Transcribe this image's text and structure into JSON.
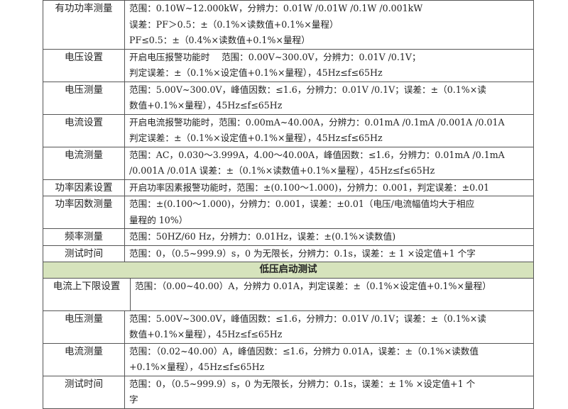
{
  "rows_top": [
    {
      "name": "有功功率测量",
      "lines": [
        "范围：0.10W~12.000kW，分辨力：0.01W /0.01W /0.1W /0.001kW",
        "误差：PF＞0.5：±（0.1%×读数值+0.1%×量程）",
        "PF≤0.5：±（0.4%×读数值+0.1%×量程）"
      ]
    },
    {
      "name": "电压设置",
      "lines": [
        "开启电压报警功能时　 范围：0.00V~300.0V，分辨力：0.01V /0.1V；",
        "判定误差：±（0.1%×设定值+0.1%×量程），45Hz≤f≤65Hz"
      ]
    },
    {
      "name": "电压测量",
      "lines": [
        "范围：5.00V~300.0V，峰值因数：≤1.6，分辨力：0.01V /0.1V；误差：±（0.1%×读",
        "数值+0.1%×量程），45Hz≤f≤65Hz"
      ]
    },
    {
      "name": "电流设置",
      "lines": [
        "开启电流报警功能时，范围：0.00mA~40.00A，分辨力：0.01mA /0.1mA /0.001A /0.01A",
        "判定误差：±（0.1%×设定值+0.1%×量程），45Hz≤f≤65Hz"
      ]
    },
    {
      "name": "电流测量",
      "lines": [
        "范围：AC，0.030～3.999A，4.00～40.00A，峰值因数：≤1.6，分辨力：0.01mA /0.1mA",
        "/0.001A /0.01A 误差：±（0.1%×读数值+0.1%×量程），45Hz≤f≤65Hz"
      ]
    },
    {
      "name": "功率因素设置",
      "lines": [
        "开启功率因素报警功能时，范围：±(0.100～1.000)，分辨力：0.001，判定误差：±0.01"
      ]
    },
    {
      "name": "功率因数测量",
      "lines": [
        "范围：±(0.100～1.000)，分辨力：0.001，误差：±0.01（电压/电流幅值均大于相应",
        "量程的 10%）"
      ]
    },
    {
      "name": "频率测量",
      "lines": [
        "范围：50HZ/60 Hz，分辨力：0.01Hz，误差：±(0.1%×读数值)"
      ]
    },
    {
      "name": "测试时间",
      "lines": [
        "范围：0，（0.5~999.9）s，0 为无限长，分辨力：0.1s，误差：± 1 ×设定值+1 个字"
      ]
    }
  ],
  "section_title": "低压启动测试",
  "section_color": "#d6e3bc",
  "rows_bottom": [
    {
      "name": "电流上下限设置",
      "lines": [
        "范围：（0.00~40.00）A，分辨力 0.01A，判定误差：±（0.1%×设定值+0.1%×量程）"
      ]
    },
    {
      "name": "电压测量",
      "lines": [
        "范围：5.00V~300.0V，峰值因数：≤1.6，分辨力：0.01V /0.1V；误差：±（0.1%×读",
        "数值+0.1%×量程），45Hz≤f≤65Hz"
      ]
    },
    {
      "name": "电流测量",
      "lines": [
        "范围：（0.02~40.00）A，峰值因数：≤1.6，分辨力 0.01A，误差：±（0.1%×读数值",
        "+0.1%×量程），45Hz≤f≤65Hz"
      ]
    },
    {
      "name": "测试时间",
      "lines": [
        "范围：0，（0.5~999.9）s，0 为无限长，分辨力：0.1s，误差：± 1% ×设定值+1 个",
        "字"
      ]
    }
  ]
}
